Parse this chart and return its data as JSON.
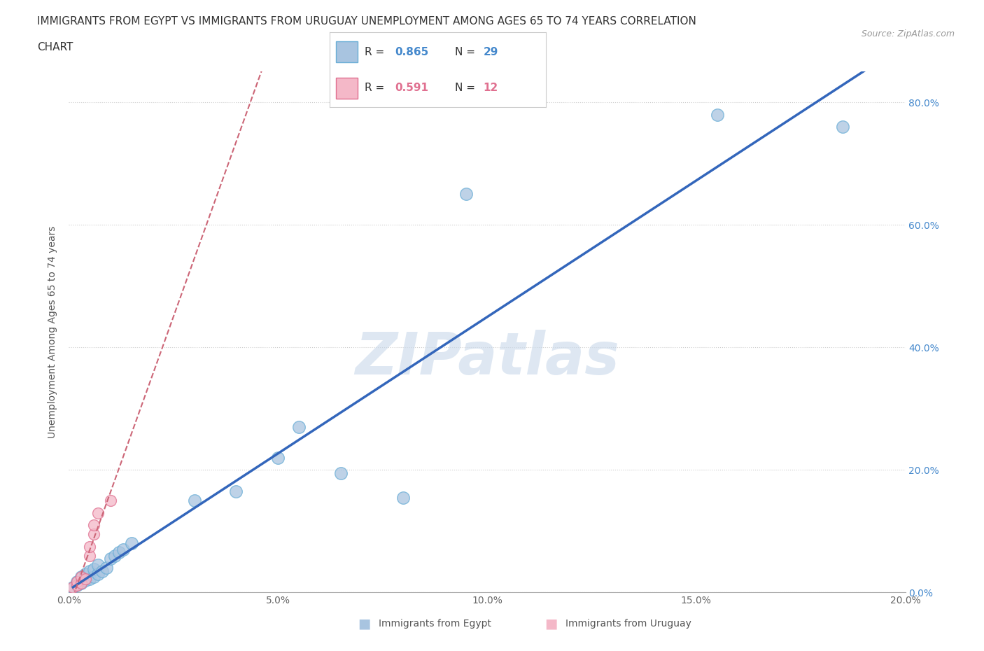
{
  "title_line1": "IMMIGRANTS FROM EGYPT VS IMMIGRANTS FROM URUGUAY UNEMPLOYMENT AMONG AGES 65 TO 74 YEARS CORRELATION",
  "title_line2": "CHART",
  "source": "Source: ZipAtlas.com",
  "ylabel": "Unemployment Among Ages 65 to 74 years",
  "xlim": [
    0.0,
    0.2
  ],
  "ylim": [
    0.0,
    0.85
  ],
  "xticks": [
    0.0,
    0.05,
    0.1,
    0.15,
    0.2
  ],
  "xtick_labels": [
    "0.0%",
    "5.0%",
    "10.0%",
    "15.0%",
    "20.0%"
  ],
  "ytick_labels": [
    "0.0%",
    "20.0%",
    "40.0%",
    "60.0%",
    "80.0%"
  ],
  "yticks": [
    0.0,
    0.2,
    0.4,
    0.6,
    0.8
  ],
  "egypt_color": "#a8c4e0",
  "egypt_edge_color": "#6aaed6",
  "uruguay_color": "#f4b8c8",
  "uruguay_edge_color": "#e07090",
  "egypt_line_color": "#3366bb",
  "uruguay_line_color": "#cc6677",
  "R_egypt": 0.865,
  "N_egypt": 29,
  "R_uruguay": 0.591,
  "N_uruguay": 12,
  "watermark": "ZIPatlas",
  "watermark_color": "#c8d8ea",
  "egypt_x": [
    0.001,
    0.002,
    0.002,
    0.003,
    0.003,
    0.004,
    0.004,
    0.005,
    0.005,
    0.006,
    0.006,
    0.007,
    0.007,
    0.008,
    0.009,
    0.01,
    0.011,
    0.012,
    0.013,
    0.015,
    0.03,
    0.04,
    0.05,
    0.055,
    0.065,
    0.08,
    0.095,
    0.155,
    0.185
  ],
  "egypt_y": [
    0.008,
    0.012,
    0.018,
    0.015,
    0.025,
    0.02,
    0.03,
    0.022,
    0.035,
    0.025,
    0.038,
    0.03,
    0.045,
    0.035,
    0.04,
    0.055,
    0.06,
    0.065,
    0.07,
    0.08,
    0.15,
    0.165,
    0.22,
    0.27,
    0.195,
    0.155,
    0.65,
    0.78,
    0.76
  ],
  "uruguay_x": [
    0.001,
    0.002,
    0.002,
    0.003,
    0.003,
    0.004,
    0.005,
    0.005,
    0.006,
    0.006,
    0.007,
    0.01
  ],
  "uruguay_y": [
    0.008,
    0.012,
    0.018,
    0.015,
    0.025,
    0.022,
    0.06,
    0.075,
    0.095,
    0.11,
    0.13,
    0.15
  ],
  "background_color": "#ffffff",
  "grid_color": "#dddddd",
  "right_axis_color": "#4488cc"
}
